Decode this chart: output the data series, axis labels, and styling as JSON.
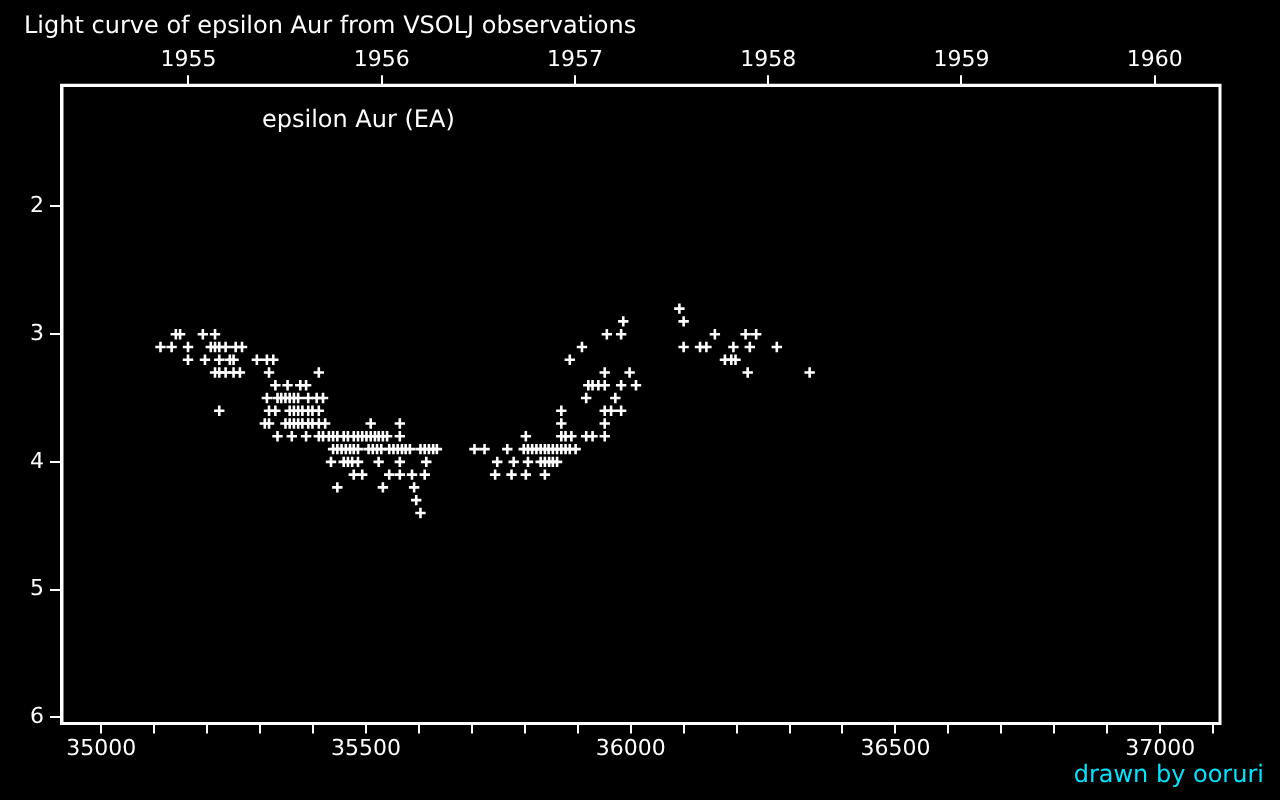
{
  "chart_data": {
    "type": "scatter",
    "title": "Light curve of epsilon Aur from VSOLJ observations",
    "annotations": [
      "epsilon Aur (EA)",
      "drawn by ooruri"
    ],
    "xlim": [
      34926,
      37113
    ],
    "xticks": [
      35000,
      {
        "value": 35100,
        "label": null
      },
      {
        "value": 35200,
        "label": null
      },
      {
        "value": 35300,
        "label": null
      },
      {
        "value": 35400,
        "label": null
      },
      35500,
      {
        "value": 35600,
        "label": null
      },
      {
        "value": 35700,
        "label": null
      },
      {
        "value": 35800,
        "label": null
      },
      {
        "value": 35900,
        "label": null
      },
      36000,
      {
        "value": 36100,
        "label": null
      },
      {
        "value": 36200,
        "label": null
      },
      {
        "value": 36300,
        "label": null
      },
      {
        "value": 36400,
        "label": null
      },
      36500,
      {
        "value": 36600,
        "label": null
      },
      {
        "value": 36700,
        "label": null
      },
      {
        "value": 36800,
        "label": null
      },
      {
        "value": 36900,
        "label": null
      },
      37000,
      {
        "value": 37100,
        "label": null
      }
    ],
    "x2lim": [
      1954.346,
      1960.338
    ],
    "x2ticks": [
      1955,
      1956,
      1957,
      1958,
      1959,
      1960
    ],
    "ylim": [
      6.05,
      1.05
    ],
    "yticks": [
      2,
      3,
      4,
      5,
      6
    ],
    "grid": false,
    "legend": false,
    "marker": "cross",
    "series": [
      {
        "color": "#ffffff",
        "x": [
          35141,
          35149,
          35192,
          35215,
          35955,
          35982,
          36237,
          36159,
          36217,
          35112,
          35133,
          35164,
          35207,
          35215,
          35223,
          35235,
          35254,
          35266,
          35908,
          36100,
          36131,
          36143,
          36194,
          36225,
          36276,
          36092,
          35986,
          36100,
          35164,
          35196,
          35223,
          35243,
          35250,
          35294,
          35313,
          35325,
          36190,
          36198,
          35885,
          36178,
          35215,
          35223,
          35235,
          35250,
          35262,
          35317,
          35998,
          35951,
          36221,
          36338,
          35411,
          35329,
          35352,
          35376,
          35387,
          35920,
          35928,
          35939,
          35951,
          35982,
          36010,
          35313,
          35333,
          35340,
          35348,
          35356,
          35364,
          35372,
          35407,
          35419,
          35391,
          35916,
          35971,
          35223,
          35317,
          35329,
          35356,
          35364,
          35372,
          35380,
          35391,
          35399,
          35411,
          35869,
          35951,
          35963,
          35982,
          35309,
          35317,
          35348,
          35356,
          35364,
          35372,
          35380,
          35391,
          35399,
          35411,
          35423,
          35509,
          35564,
          35869,
          35951,
          35333,
          35360,
          35387,
          35411,
          35419,
          35430,
          35438,
          35446,
          35458,
          35466,
          35477,
          35485,
          35493,
          35501,
          35509,
          35517,
          35524,
          35532,
          35540,
          35564,
          35802,
          35869,
          35877,
          35888,
          35916,
          35928,
          35951,
          35438,
          35446,
          35454,
          35462,
          35470,
          35477,
          35485,
          35505,
          35513,
          35521,
          35529,
          35544,
          35552,
          35560,
          35568,
          35575,
          35583,
          35603,
          35611,
          35619,
          35627,
          35634,
          35705,
          35724,
          35767,
          35798,
          35806,
          35814,
          35822,
          35830,
          35838,
          35845,
          35853,
          35861,
          35869,
          35877,
          35885,
          35896,
          35434,
          35458,
          35466,
          35474,
          35485,
          35524,
          35564,
          35614,
          35748,
          35779,
          35806,
          35830,
          35838,
          35846,
          35853,
          35861,
          35477,
          35493,
          35544,
          35564,
          35587,
          35611,
          35744,
          35775,
          35802,
          35838,
          35446,
          35532,
          35591,
          35595,
          35603
        ],
        "values": [
          3.0,
          3.0,
          3.0,
          3.0,
          3.0,
          3.0,
          3.0,
          3.0,
          3.0,
          3.1,
          3.1,
          3.1,
          3.1,
          3.1,
          3.1,
          3.1,
          3.1,
          3.1,
          3.1,
          3.1,
          3.1,
          3.1,
          3.1,
          3.1,
          3.1,
          2.8,
          2.9,
          2.9,
          3.2,
          3.2,
          3.2,
          3.2,
          3.2,
          3.2,
          3.2,
          3.2,
          3.2,
          3.2,
          3.2,
          3.2,
          3.3,
          3.3,
          3.3,
          3.3,
          3.3,
          3.3,
          3.3,
          3.3,
          3.3,
          3.3,
          3.3,
          3.4,
          3.4,
          3.4,
          3.4,
          3.4,
          3.4,
          3.4,
          3.4,
          3.4,
          3.4,
          3.5,
          3.5,
          3.5,
          3.5,
          3.5,
          3.5,
          3.5,
          3.5,
          3.5,
          3.5,
          3.5,
          3.5,
          3.6,
          3.6,
          3.6,
          3.6,
          3.6,
          3.6,
          3.6,
          3.6,
          3.6,
          3.6,
          3.6,
          3.6,
          3.6,
          3.6,
          3.7,
          3.7,
          3.7,
          3.7,
          3.7,
          3.7,
          3.7,
          3.7,
          3.7,
          3.7,
          3.7,
          3.7,
          3.7,
          3.7,
          3.7,
          3.8,
          3.8,
          3.8,
          3.8,
          3.8,
          3.8,
          3.8,
          3.8,
          3.8,
          3.8,
          3.8,
          3.8,
          3.8,
          3.8,
          3.8,
          3.8,
          3.8,
          3.8,
          3.8,
          3.8,
          3.8,
          3.8,
          3.8,
          3.8,
          3.8,
          3.8,
          3.8,
          3.9,
          3.9,
          3.9,
          3.9,
          3.9,
          3.9,
          3.9,
          3.9,
          3.9,
          3.9,
          3.9,
          3.9,
          3.9,
          3.9,
          3.9,
          3.9,
          3.9,
          3.9,
          3.9,
          3.9,
          3.9,
          3.9,
          3.9,
          3.9,
          3.9,
          3.9,
          3.9,
          3.9,
          3.9,
          3.9,
          3.9,
          3.9,
          3.9,
          3.9,
          3.9,
          3.9,
          3.9,
          3.9,
          4.0,
          4.0,
          4.0,
          4.0,
          4.0,
          4.0,
          4.0,
          4.0,
          4.0,
          4.0,
          4.0,
          4.0,
          4.0,
          4.0,
          4.0,
          4.0,
          4.1,
          4.1,
          4.1,
          4.1,
          4.1,
          4.1,
          4.1,
          4.1,
          4.1,
          4.1,
          4.2,
          4.2,
          4.2,
          4.3,
          4.4
        ]
      }
    ]
  }
}
